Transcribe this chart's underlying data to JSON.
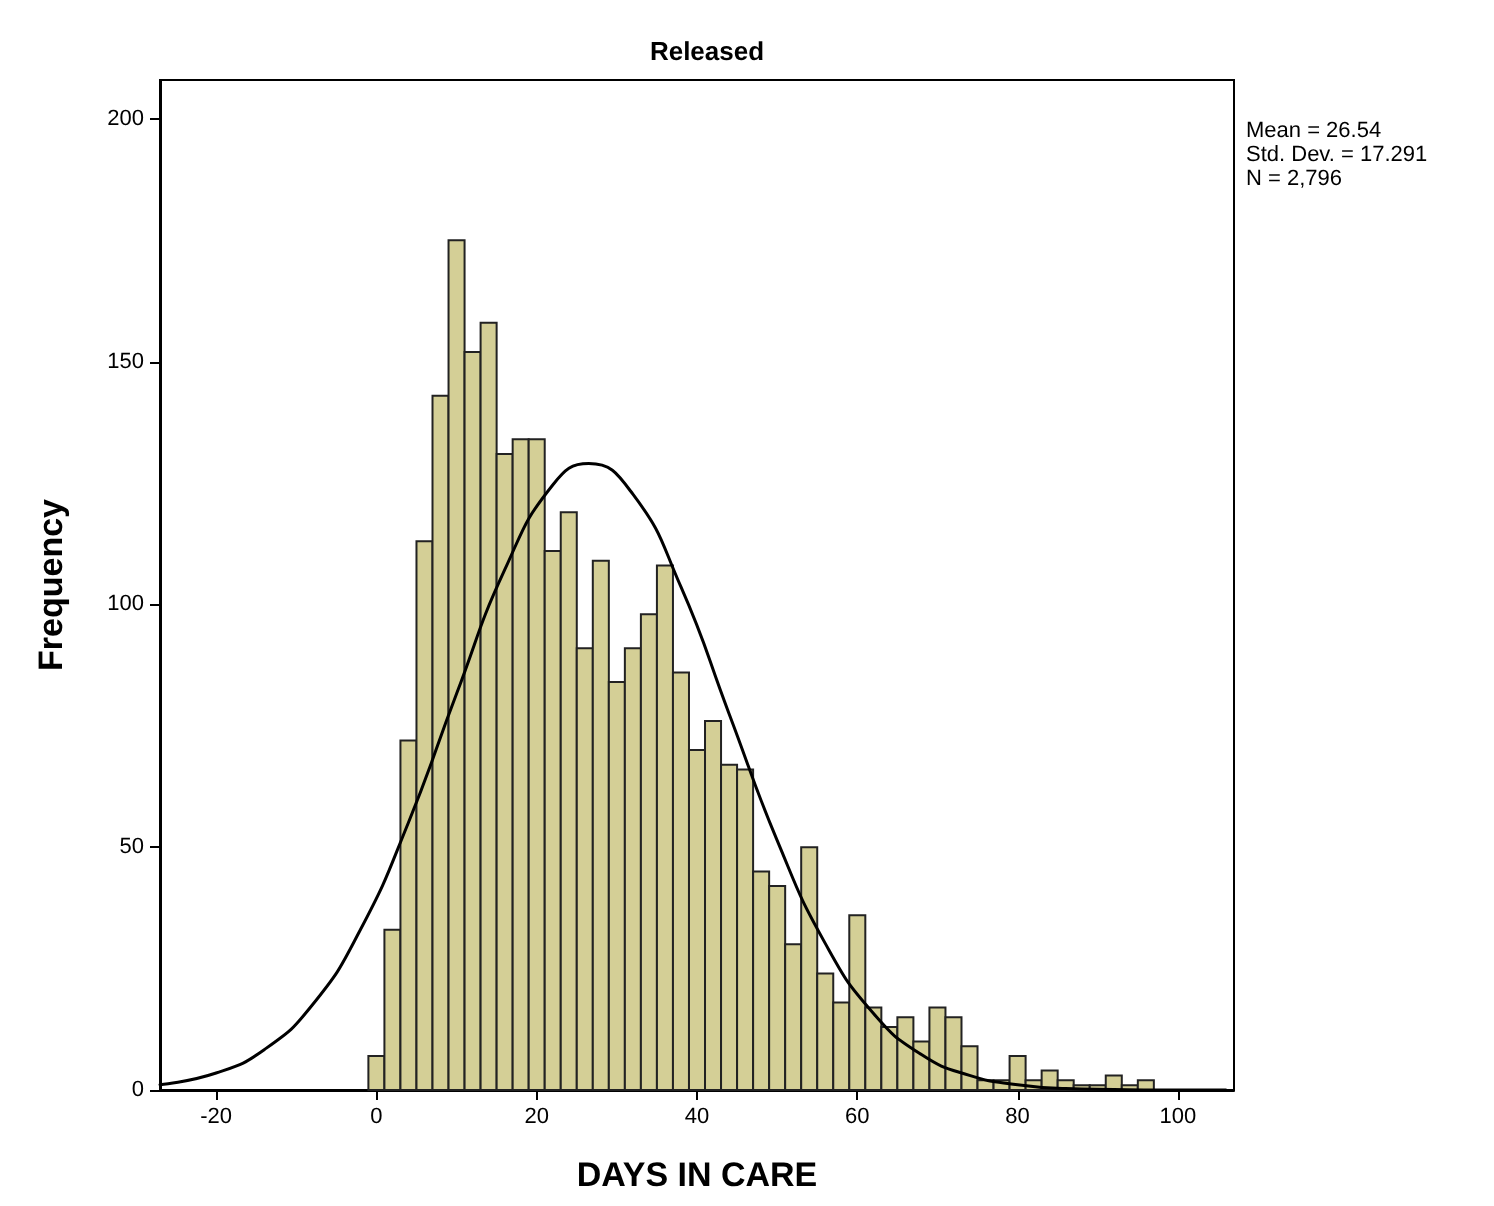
{
  "chart_data": {
    "type": "histogram",
    "title": "Released",
    "xlabel": "DAYS IN CARE",
    "ylabel": "Frequency",
    "annotations": [
      "Mean = 26.54",
      "Std. Dev. = 17.291",
      "N = 2,796"
    ],
    "xlim": [
      -27,
      107
    ],
    "xticks": [
      -20,
      0,
      20,
      40,
      60,
      80,
      100
    ],
    "ylim": [
      0,
      208
    ],
    "yticks": [
      0,
      50,
      100,
      150,
      200
    ],
    "grid": false,
    "marker": "none",
    "line_style": "solid",
    "series": [
      {
        "color": "#d4cf96",
        "bins": [
          -1,
          1,
          3,
          5,
          7,
          9,
          11,
          13,
          15,
          17,
          19,
          21,
          23,
          25,
          27,
          29,
          31,
          33,
          35,
          37,
          39,
          41,
          43,
          45,
          47,
          49,
          51,
          53,
          55,
          57,
          59,
          61,
          63,
          65,
          67,
          69,
          71,
          73,
          75,
          77,
          79,
          81,
          83,
          85,
          87,
          89,
          91,
          93,
          95,
          97
        ],
        "values": [
          7,
          33,
          72,
          113,
          143,
          175,
          152,
          158,
          131,
          134,
          134,
          111,
          119,
          91,
          109,
          84,
          91,
          98,
          108,
          86,
          70,
          76,
          67,
          66,
          45,
          42,
          30,
          50,
          24,
          18,
          36,
          17,
          13,
          15,
          10,
          17,
          15,
          9,
          2,
          2,
          7,
          2,
          4,
          2,
          1,
          1,
          3,
          1,
          2
        ]
      },
      {
        "type": "line",
        "color": "#000000",
        "x": [
          -27,
          -20,
          -14,
          -8,
          -2,
          4,
          10,
          16,
          22,
          26.5,
          32,
          38,
          44,
          50,
          56,
          62,
          68,
          74,
          80,
          86,
          92,
          98,
          106
        ],
        "values": [
          1.1,
          3.5,
          8.3,
          17.5,
          33.0,
          55.1,
          81.6,
          107.1,
          124.6,
          129.0,
          122.7,
          103.6,
          77.5,
          51.4,
          30.2,
          15.8,
          7.3,
          3.0,
          1.1,
          0.3,
          0.1,
          0,
          0
        ]
      }
    ]
  }
}
